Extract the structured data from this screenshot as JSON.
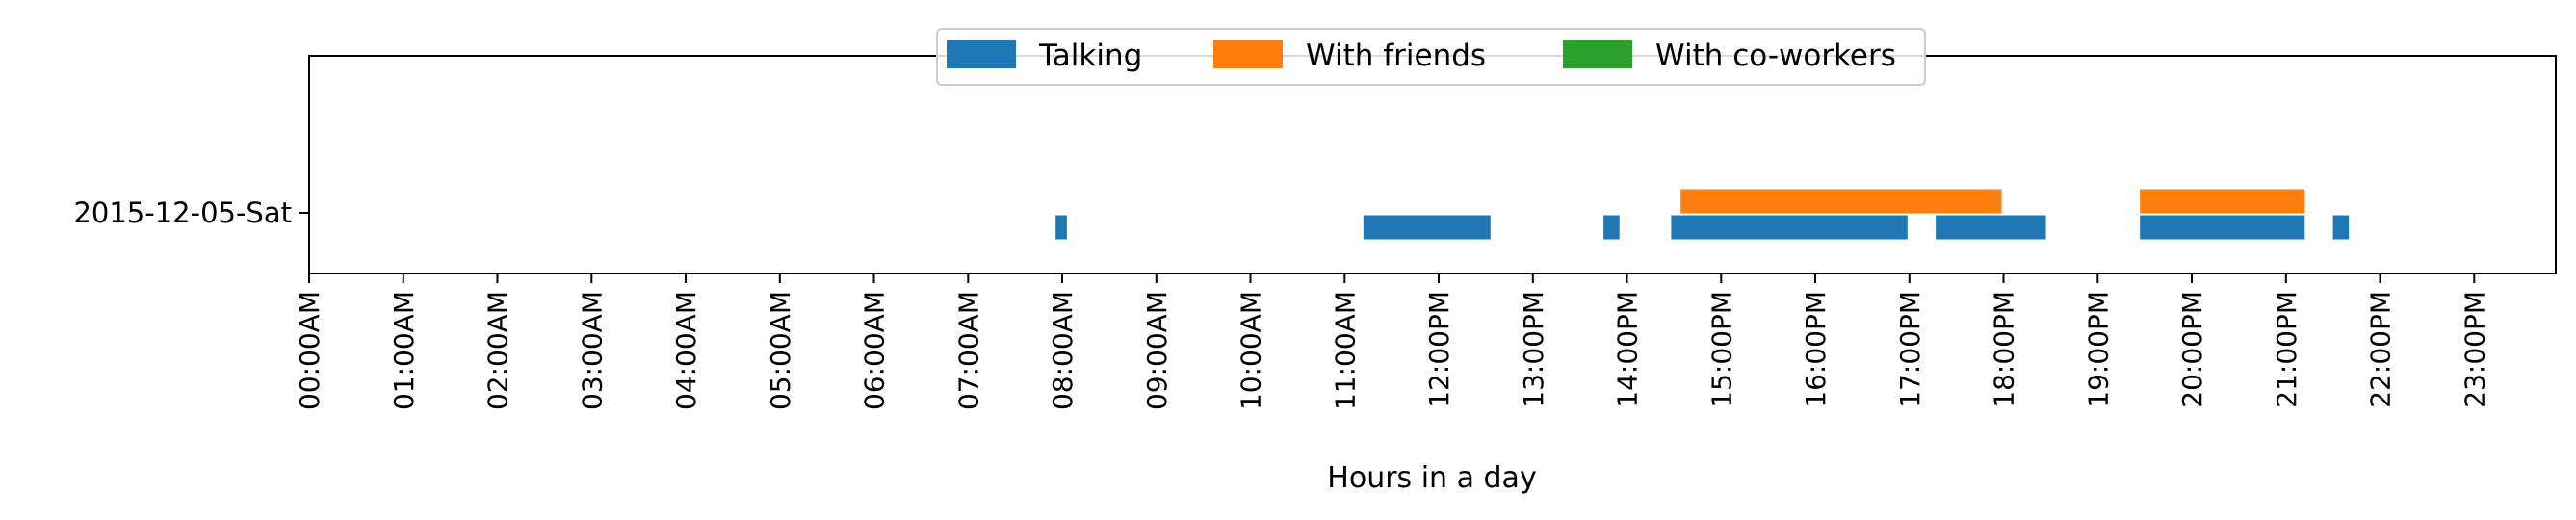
{
  "chart_data": {
    "type": "timeline",
    "xlabel": "Hours in a day",
    "xlim": [
      0,
      24
    ],
    "x_ticks": [
      "00:00AM",
      "01:00AM",
      "02:00AM",
      "03:00AM",
      "04:00AM",
      "05:00AM",
      "06:00AM",
      "07:00AM",
      "08:00AM",
      "09:00AM",
      "10:00AM",
      "11:00AM",
      "12:00PM",
      "13:00PM",
      "14:00PM",
      "15:00PM",
      "16:00PM",
      "17:00PM",
      "18:00PM",
      "19:00PM",
      "20:00PM",
      "21:00PM",
      "22:00PM",
      "23:00PM"
    ],
    "rows": [
      "2015-12-05-Sat"
    ],
    "legend_position": "top-center",
    "grid": false,
    "series": [
      {
        "name": "Talking",
        "color": "#1f77b4",
        "intervals": [
          [
            7.93,
            8.05
          ],
          [
            11.2,
            12.55
          ],
          [
            13.75,
            13.92
          ],
          [
            14.47,
            16.98
          ],
          [
            17.28,
            18.45
          ],
          [
            19.45,
            21.2
          ],
          [
            21.5,
            21.67
          ]
        ]
      },
      {
        "name": "With friends",
        "color": "#ff7f0e",
        "intervals": [
          [
            14.57,
            17.98
          ],
          [
            19.45,
            21.2
          ]
        ]
      },
      {
        "name": "With co-workers",
        "color": "#2ca02c",
        "intervals": []
      }
    ]
  }
}
